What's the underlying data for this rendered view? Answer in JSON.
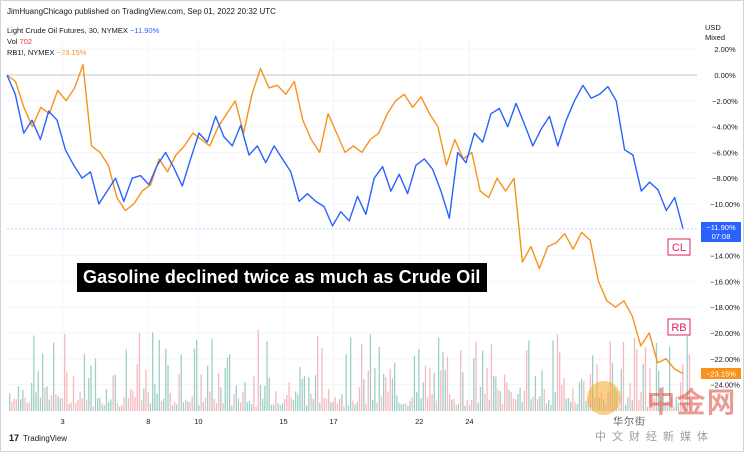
{
  "header": {
    "published": "JimHuangChicago published on TradingView.com, Sep 01, 2022 20:32 UTC"
  },
  "legend": {
    "cl_name": "Light Crude Oil Futures, 30, NYMEX",
    "cl_value": "−11.90%",
    "vol_name": "Vol",
    "vol_value": "702",
    "rb_name": "RB1!, NYMEX",
    "rb_value": "−23.15%"
  },
  "axis_head": {
    "currency": "USD",
    "mode": "Mixed"
  },
  "headline": "Gasoline declined twice as much as Crude Oil",
  "labels": {
    "cl": "CL",
    "rb": "RB"
  },
  "price_tags": {
    "cl_pct": "−11.90%",
    "cl_time": "07:08",
    "rb_pct": "−23.15%"
  },
  "brand": {
    "name": "TradingView"
  },
  "watermark": {
    "main": "中金网",
    "sub": "中文财经新媒体",
    "account": "华尔街"
  },
  "colors": {
    "cl": "#2962ff",
    "rb": "#f7931a",
    "vol_up": "#f7b9bd",
    "vol_down": "#9ecfc6",
    "cl_label": "#e0245e"
  },
  "chart_data": {
    "type": "line",
    "y_unit": "percent change",
    "ylim": [
      -24,
      2
    ],
    "y_ticks": [
      "2.00%",
      "0.00%",
      "−2.00%",
      "−4.00%",
      "−6.00%",
      "−8.00%",
      "−10.00%",
      "−14.00%",
      "−16.00%",
      "−18.00%",
      "−20.00%",
      "−22.00%",
      "−24.00%"
    ],
    "y_tick_values": [
      2,
      0,
      -2,
      -4,
      -6,
      -8,
      -10,
      -14,
      -16,
      -18,
      -20,
      -22,
      -24
    ],
    "x_ticks": [
      "3",
      "8",
      "10",
      "15",
      "17",
      "22",
      "24"
    ],
    "x_tick_pos": [
      0.081,
      0.206,
      0.279,
      0.403,
      0.476,
      0.601,
      0.674
    ],
    "grid": true,
    "series": [
      {
        "name": "Light Crude Oil Futures",
        "key": "cl",
        "values": [
          0,
          -1.5,
          -4.5,
          -3.5,
          -5.0,
          -2.8,
          -3.5,
          -5.8,
          -7.0,
          -8.0,
          -7.5,
          -10.0,
          -9.0,
          -8.0,
          -9.8,
          -8.0,
          -7.8,
          -8.5,
          -7.0,
          -6.0,
          -7.2,
          -8.6,
          -6.5,
          -4.5,
          -5.2,
          -3.2,
          -4.8,
          -5.5,
          -3.9,
          -6.2,
          -5.5,
          -6.8,
          -5.5,
          -6.5,
          -7.5,
          -9.8,
          -9.2,
          -9.8,
          -10.2,
          -11.7,
          -10.6,
          -11.3,
          -9.4,
          -10.8,
          -8.0,
          -7.1,
          -9.0,
          -7.7,
          -9.2,
          -7.0,
          -6.5,
          -7.3,
          -9.0,
          -11.1,
          -6.0,
          -6.8,
          -4.5,
          -5.2,
          -3.0,
          -2.6,
          -4.0,
          -2.2,
          -3.8,
          -5.5,
          -4.2,
          -3.2,
          -5.5,
          -3.5,
          -2.0,
          -0.8,
          -1.8,
          -1.5,
          -0.9,
          -2.0,
          -5.8,
          -6.2,
          -9.0,
          -8.3,
          -8.9,
          -10.5,
          -9.5,
          -11.9
        ],
        "last": -11.9
      },
      {
        "name": "RB1!",
        "key": "rb",
        "values": [
          0,
          -0.5,
          -2.5,
          -4.0,
          -2.5,
          -3.0,
          -1.2,
          -2.0,
          -1.0,
          0.8,
          -5.5,
          -6.0,
          -7.0,
          -9.5,
          -10.5,
          -10.0,
          -9.0,
          -8.5,
          -6.5,
          -7.5,
          -6.2,
          -5.5,
          -4.5,
          -5.0,
          -5.5,
          -4.0,
          -3.0,
          -2.0,
          -4.5,
          -1.5,
          0.5,
          -1.0,
          -0.8,
          -1.5,
          -0.5,
          -3.5,
          -5.0,
          -6.0,
          -3.0,
          -4.5,
          -6.0,
          -5.5,
          -6.0,
          -5.0,
          -4.5,
          -3.0,
          -2.0,
          -1.5,
          -2.5,
          -1.7,
          -3.0,
          -4.0,
          -7.0,
          -5.0,
          -6.5,
          -6.0,
          -9.0,
          -9.5,
          -8.0,
          -9.0,
          -8.0,
          -14.5,
          -13.3,
          -15.0,
          -13.3,
          -13.0,
          -12.3,
          -13.5,
          -12.2,
          -12.8,
          -16.0,
          -17.5,
          -18.0,
          -17.5,
          -18.7,
          -21.0,
          -20.0,
          -22.3,
          -22.0,
          -22.8,
          -23.15
        ],
        "last": -23.15
      }
    ]
  }
}
